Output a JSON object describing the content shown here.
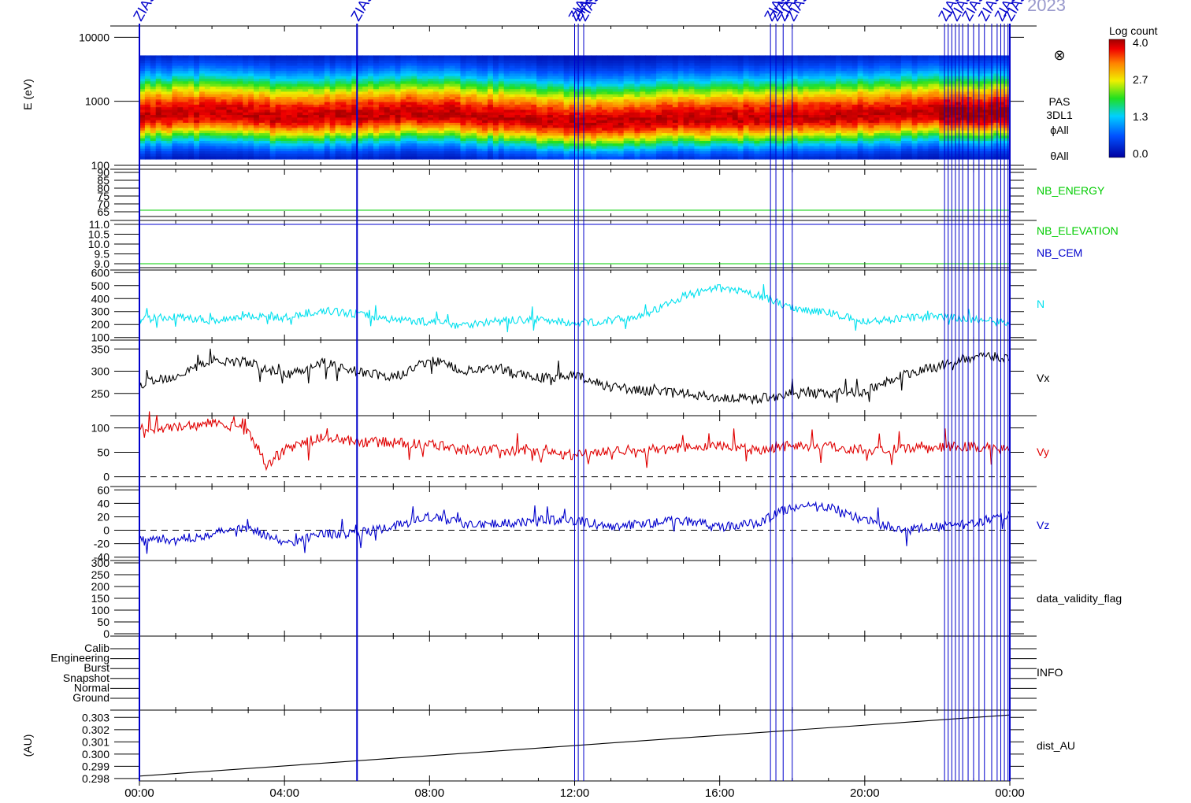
{
  "header": {
    "year_label": "2023"
  },
  "zias_markers": {
    "label": "ZIAS",
    "times_h": [
      0.0,
      6.0,
      12.0,
      12.1,
      12.25,
      17.4,
      17.55,
      17.75,
      18.0,
      22.2,
      22.3,
      22.4,
      22.5,
      22.6,
      22.7,
      22.85,
      23.0,
      23.15,
      23.3,
      23.5,
      23.65,
      23.75,
      23.85,
      23.95,
      24.0
    ]
  },
  "colorbar": {
    "title": "Log count",
    "ticks": [
      "4.0",
      "2.7",
      "1.3",
      "0.0"
    ]
  },
  "chart_data": [
    {
      "type": "heatmap",
      "panel": "spectrogram",
      "ylabel": "E (eV)",
      "yscale": "log",
      "ylim": [
        100,
        15000
      ],
      "yticks": [
        "10000",
        "1000",
        "100"
      ],
      "side_labels": [
        "PAS",
        "3DL1",
        "ϕAll",
        "θAll"
      ],
      "special_symbol": "⊗",
      "peak_energy_eV_by_hour": [
        [
          0,
          600
        ],
        [
          2,
          650
        ],
        [
          4,
          550
        ],
        [
          6,
          600
        ],
        [
          8,
          650
        ],
        [
          10,
          550
        ],
        [
          12,
          450
        ],
        [
          14,
          500
        ],
        [
          16,
          550
        ],
        [
          18,
          550
        ],
        [
          20,
          600
        ],
        [
          22,
          650
        ],
        [
          24,
          650
        ]
      ],
      "colorscale": "rainbow (blue→red), log count 0.0–4.0"
    },
    {
      "type": "line",
      "panel": "nb_energy",
      "series": [
        {
          "name": "NB_ENERGY",
          "color": "#00cc00",
          "values": [
            [
              0,
              66
            ],
            [
              24,
              66
            ]
          ]
        }
      ],
      "yticks": [
        "90",
        "85",
        "80",
        "75",
        "70",
        "65"
      ],
      "ylim": [
        62,
        92
      ]
    },
    {
      "type": "line",
      "panel": "nb_elevation",
      "series": [
        {
          "name": "NB_ELEVATION",
          "color": "#00cc00",
          "values": [
            [
              0,
              9.0
            ],
            [
              24,
              9.0
            ]
          ]
        },
        {
          "name": "NB_CEM",
          "color": "#0000cc",
          "values": [
            [
              0,
              11.0
            ],
            [
              24,
              11.0
            ]
          ]
        }
      ],
      "yticks": [
        "11.0",
        "10.5",
        "10.0",
        "9.5",
        "9.0"
      ],
      "ylim": [
        8.8,
        11.2
      ]
    },
    {
      "type": "line",
      "panel": "density",
      "series": [
        {
          "name": "N",
          "color": "#00e0ee",
          "values": [
            [
              0,
              240
            ],
            [
              1,
              260
            ],
            [
              2,
              230
            ],
            [
              3,
              270
            ],
            [
              4,
              250
            ],
            [
              5,
              310
            ],
            [
              6,
              280
            ],
            [
              7,
              240
            ],
            [
              8,
              220
            ],
            [
              9,
              200
            ],
            [
              10,
              230
            ],
            [
              11,
              240
            ],
            [
              12,
              210
            ],
            [
              13,
              230
            ],
            [
              14,
              280
            ],
            [
              15,
              420
            ],
            [
              16,
              480
            ],
            [
              17,
              430
            ],
            [
              18,
              330
            ],
            [
              19,
              290
            ],
            [
              20,
              220
            ],
            [
              21,
              250
            ],
            [
              22,
              260
            ],
            [
              23,
              240
            ],
            [
              24,
              210
            ]
          ]
        }
      ],
      "yticks": [
        "600",
        "500",
        "400",
        "300",
        "200",
        "100"
      ],
      "ylim": [
        80,
        620
      ]
    },
    {
      "type": "line",
      "panel": "vx",
      "series": [
        {
          "name": "Vx",
          "color": "#000000",
          "values": [
            [
              0,
              270
            ],
            [
              1,
              290
            ],
            [
              2,
              325
            ],
            [
              3,
              320
            ],
            [
              4,
              290
            ],
            [
              5,
              320
            ],
            [
              6,
              300
            ],
            [
              7,
              285
            ],
            [
              8,
              325
            ],
            [
              9,
              300
            ],
            [
              10,
              305
            ],
            [
              11,
              285
            ],
            [
              12,
              290
            ],
            [
              13,
              265
            ],
            [
              14,
              255
            ],
            [
              15,
              250
            ],
            [
              16,
              240
            ],
            [
              17,
              238
            ],
            [
              18,
              250
            ],
            [
              19,
              250
            ],
            [
              20,
              255
            ],
            [
              21,
              290
            ],
            [
              22,
              310
            ],
            [
              23,
              335
            ],
            [
              24,
              330
            ]
          ]
        }
      ],
      "yticks": [
        "350",
        "300",
        "250"
      ],
      "ylim": [
        200,
        370
      ]
    },
    {
      "type": "line",
      "panel": "vy",
      "series": [
        {
          "name": "Vy",
          "color": "#e00000",
          "values": [
            [
              0,
              100
            ],
            [
              1,
              100
            ],
            [
              2,
              110
            ],
            [
              3,
              95
            ],
            [
              3.5,
              25
            ],
            [
              4,
              55
            ],
            [
              5,
              80
            ],
            [
              6,
              72
            ],
            [
              7,
              70
            ],
            [
              8,
              65
            ],
            [
              9,
              55
            ],
            [
              10,
              55
            ],
            [
              11,
              50
            ],
            [
              12,
              45
            ],
            [
              13,
              55
            ],
            [
              14,
              55
            ],
            [
              15,
              58
            ],
            [
              16,
              65
            ],
            [
              17,
              55
            ],
            [
              18,
              65
            ],
            [
              19,
              62
            ],
            [
              20,
              55
            ],
            [
              21,
              55
            ],
            [
              22,
              60
            ],
            [
              23,
              62
            ],
            [
              24,
              55
            ]
          ]
        }
      ],
      "yticks": [
        "100",
        "50",
        "0"
      ],
      "ylim": [
        -20,
        125
      ],
      "reference_line": 0
    },
    {
      "type": "line",
      "panel": "vz",
      "series": [
        {
          "name": "Vz",
          "color": "#0000cc",
          "values": [
            [
              0,
              -10
            ],
            [
              1,
              -15
            ],
            [
              2,
              -5
            ],
            [
              3,
              5
            ],
            [
              4,
              -20
            ],
            [
              5,
              -5
            ],
            [
              6,
              -5
            ],
            [
              7,
              5
            ],
            [
              8,
              20
            ],
            [
              9,
              10
            ],
            [
              10,
              10
            ],
            [
              11,
              15
            ],
            [
              12,
              15
            ],
            [
              13,
              5
            ],
            [
              14,
              10
            ],
            [
              15,
              15
            ],
            [
              16,
              5
            ],
            [
              17,
              10
            ],
            [
              18,
              35
            ],
            [
              19,
              35
            ],
            [
              20,
              15
            ],
            [
              21,
              0
            ],
            [
              22,
              5
            ],
            [
              23,
              10
            ],
            [
              24,
              25
            ]
          ]
        }
      ],
      "yticks": [
        "60",
        "40",
        "20",
        "0",
        "-20",
        "-40"
      ],
      "ylim": [
        -45,
        65
      ],
      "reference_line": 0
    },
    {
      "type": "line",
      "panel": "data_validity",
      "series": [
        {
          "name": "data_validity_flag",
          "values": []
        }
      ],
      "yticks": [
        "300",
        "250",
        "200",
        "150",
        "100",
        "50",
        "0"
      ],
      "ylim": [
        -10,
        310
      ]
    },
    {
      "type": "line",
      "panel": "info",
      "series": [
        {
          "name": "INFO",
          "values": []
        }
      ],
      "yticks": [
        "Calib",
        "Engineering",
        "Burst",
        "Snapshot",
        "Normal",
        "Ground"
      ]
    },
    {
      "type": "line",
      "panel": "dist",
      "ylabel": "(AU)",
      "series": [
        {
          "name": "dist_AU",
          "color": "#000000",
          "values": [
            [
              0,
              0.2982
            ],
            [
              24,
              0.3032
            ]
          ]
        }
      ],
      "yticks": [
        "0.303",
        "0.302",
        "0.301",
        "0.300",
        "0.299",
        "0.298"
      ],
      "ylim": [
        0.2978,
        0.3036
      ]
    }
  ],
  "x_axis": {
    "ticks": [
      "00:00",
      "04:00",
      "08:00",
      "12:00",
      "16:00",
      "20:00",
      "00:00"
    ],
    "range_h": [
      0,
      24
    ]
  }
}
